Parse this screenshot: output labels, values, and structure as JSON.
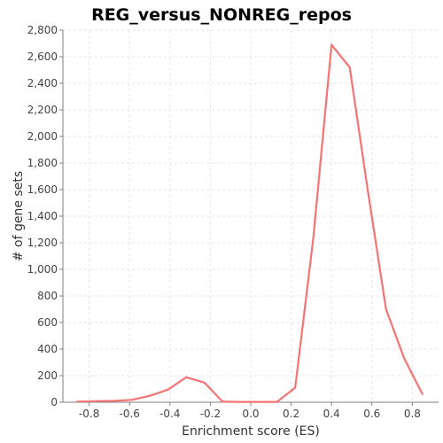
{
  "chart_data": {
    "type": "line",
    "title": "REG_versus_NONREG_repos",
    "xlabel": "Enrichment score (ES)",
    "ylabel": "# of gene sets",
    "xlim": [
      -0.93,
      0.93
    ],
    "ylim": [
      0,
      2800
    ],
    "x_ticks": [
      -0.8,
      -0.6,
      -0.4,
      -0.2,
      0.0,
      0.2,
      0.4,
      0.6,
      0.8
    ],
    "x_tick_labels": [
      "-0.8",
      "-0.6",
      "-0.4",
      "-0.2",
      "0.0",
      "0.2",
      "0.4",
      "0.6",
      "0.8"
    ],
    "y_ticks": [
      0,
      200,
      400,
      600,
      800,
      1000,
      1200,
      1400,
      1600,
      1800,
      2000,
      2200,
      2400,
      2600,
      2800
    ],
    "y_tick_labels": [
      "0",
      "200",
      "400",
      "600",
      "800",
      "1,000",
      "1,200",
      "1,400",
      "1,600",
      "1,800",
      "2,000",
      "2,200",
      "2,400",
      "2,600",
      "2,800"
    ],
    "grid": true,
    "legend": "none",
    "colors": {
      "line": "#f47474",
      "grid": "#e6e6e6",
      "axis": "#7f7f7f"
    },
    "series": [
      {
        "x": [
          -0.86,
          -0.77,
          -0.68,
          -0.59,
          -0.5,
          -0.41,
          -0.32,
          -0.23,
          -0.14,
          -0.05,
          0.04,
          0.13,
          0.22,
          0.31,
          0.4,
          0.49,
          0.58,
          0.67,
          0.76,
          0.85
        ],
        "y": [
          5,
          8,
          10,
          18,
          48,
          95,
          188,
          148,
          5,
          3,
          3,
          3,
          110,
          1240,
          2690,
          2520,
          1590,
          700,
          330,
          60
        ]
      }
    ]
  }
}
